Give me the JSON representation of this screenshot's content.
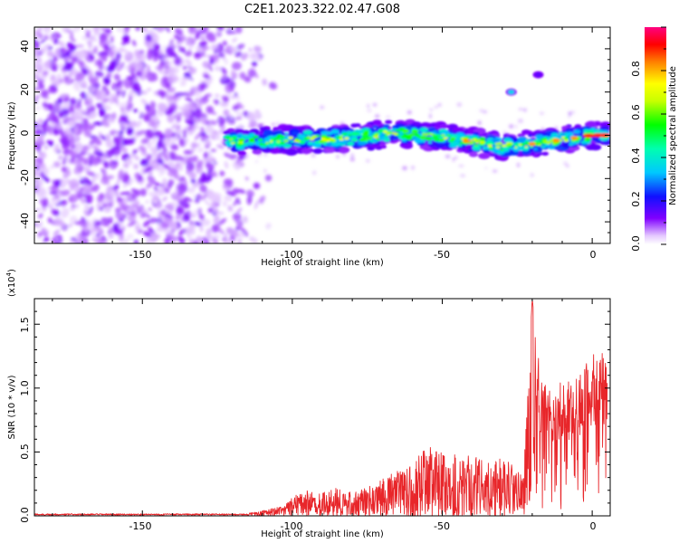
{
  "title": "C2E1.2023.322.02.47.G08",
  "top_panel": {
    "xlabel": "Height of straight line (km)",
    "ylabel": "Frequency (Hz)",
    "x_ticks": [
      "-150",
      "-100",
      "-50",
      "0"
    ],
    "y_ticks": [
      "40",
      "20",
      "0",
      "-20",
      "-40"
    ],
    "colorbar": {
      "label": "Normalized spectral amplitude",
      "ticks": [
        "0.0",
        "0.2",
        "0.4",
        "0.6",
        "0.8"
      ]
    }
  },
  "bottom_panel": {
    "xlabel": "Height of straight line (km)",
    "ylabel": "SNR (10 * v/v)",
    "multiplier": "(x10",
    "multiplier_exp": "4",
    "multiplier_close": ")",
    "x_ticks": [
      "-150",
      "-100",
      "-50",
      "0"
    ],
    "y_ticks": [
      "0.0",
      "0.5",
      "1.0",
      "1.5"
    ]
  },
  "chart_data": [
    {
      "type": "heatmap",
      "title": "C2E1.2023.322.02.47.G08",
      "xlabel": "Height of straight line (km)",
      "ylabel": "Frequency (Hz)",
      "xlim": [
        -186,
        6
      ],
      "ylim": [
        -50,
        50
      ],
      "colorbar_label": "Normalized spectral amplitude",
      "colorbar_range": [
        0,
        1
      ],
      "colormap": "rainbow (violet-blue-cyan-green-yellow-red-pink)",
      "features": {
        "noise_region_km": [
          -186,
          -112
        ],
        "signal_band_km": [
          -122,
          5
        ],
        "signal_band_center_hz": [
          {
            "x": -120,
            "y": -3
          },
          {
            "x": -100,
            "y": -2
          },
          {
            "x": -80,
            "y": -1
          },
          {
            "x": -65,
            "y": 1
          },
          {
            "x": -50,
            "y": -1
          },
          {
            "x": -40,
            "y": -3
          },
          {
            "x": -30,
            "y": -5
          },
          {
            "x": -20,
            "y": -4
          },
          {
            "x": -10,
            "y": -2
          },
          {
            "x": 0,
            "y": 0
          },
          {
            "x": 5,
            "y": 0
          }
        ],
        "isolated_spots": [
          {
            "x": -27,
            "y": 20,
            "amp": 0.35
          },
          {
            "x": -18,
            "y": 28,
            "amp": 0.15
          }
        ]
      }
    },
    {
      "type": "line",
      "xlabel": "Height of straight line (km)",
      "ylabel": "SNR (10 * v/v)",
      "y_multiplier": "x10^4",
      "xlim": [
        -186,
        6
      ],
      "ylim": [
        0,
        1.7
      ],
      "envelope": [
        {
          "x": -186,
          "y": 0.01
        },
        {
          "x": -120,
          "y": 0.01
        },
        {
          "x": -112,
          "y": 0.03
        },
        {
          "x": -103,
          "y": 0.08
        },
        {
          "x": -100,
          "y": 0.15
        },
        {
          "x": -95,
          "y": 0.2
        },
        {
          "x": -90,
          "y": 0.18
        },
        {
          "x": -85,
          "y": 0.22
        },
        {
          "x": -80,
          "y": 0.18
        },
        {
          "x": -75,
          "y": 0.22
        },
        {
          "x": -70,
          "y": 0.3
        },
        {
          "x": -65,
          "y": 0.35
        },
        {
          "x": -60,
          "y": 0.42
        },
        {
          "x": -55,
          "y": 0.55
        },
        {
          "x": -50,
          "y": 0.5
        },
        {
          "x": -45,
          "y": 0.5
        },
        {
          "x": -40,
          "y": 0.48
        },
        {
          "x": -35,
          "y": 0.42
        },
        {
          "x": -30,
          "y": 0.45
        },
        {
          "x": -26,
          "y": 0.4
        },
        {
          "x": -23,
          "y": 0.3
        },
        {
          "x": -20,
          "y": 1.7
        },
        {
          "x": -18,
          "y": 1.25
        },
        {
          "x": -15,
          "y": 1.0
        },
        {
          "x": -10,
          "y": 1.05
        },
        {
          "x": -5,
          "y": 1.1
        },
        {
          "x": 0,
          "y": 1.25
        },
        {
          "x": 3,
          "y": 1.35
        },
        {
          "x": 5,
          "y": 1.15
        }
      ]
    }
  ]
}
